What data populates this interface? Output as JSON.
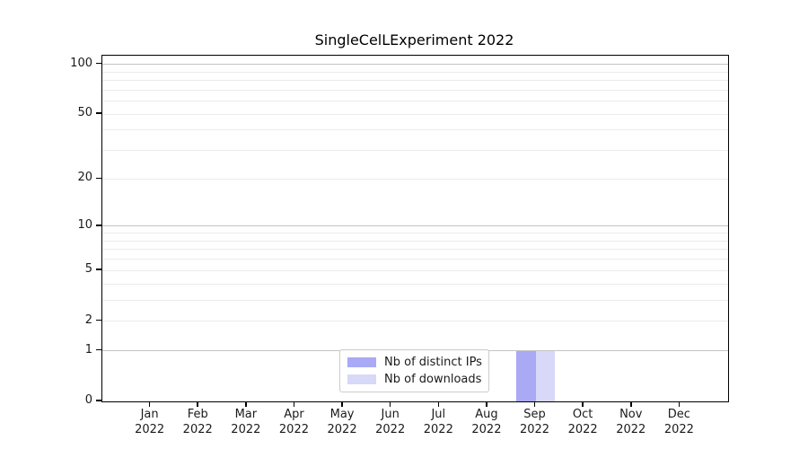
{
  "chart_data": {
    "type": "bar",
    "title": "SingleCelLExperiment 2022",
    "categories": [
      "Jan",
      "Feb",
      "Mar",
      "Apr",
      "May",
      "Jun",
      "Jul",
      "Aug",
      "Sep",
      "Oct",
      "Nov",
      "Dec"
    ],
    "x_year_label": "2022",
    "series": [
      {
        "name": "Nb of distinct IPs",
        "color": "#a9a9f5",
        "values": [
          0,
          0,
          0,
          0,
          0,
          0,
          0,
          0,
          1,
          0,
          0,
          0
        ]
      },
      {
        "name": "Nb of downloads",
        "color": "#d8d8f8",
        "values": [
          0,
          0,
          0,
          0,
          0,
          0,
          0,
          0,
          1,
          0,
          0,
          0
        ]
      }
    ],
    "y_scale": "log10(1+y)",
    "y_tick_labels": [
      0,
      1,
      2,
      5,
      10,
      20,
      50,
      100
    ],
    "y_major_gridlines": [
      1,
      10,
      100
    ],
    "y_minor_gridlines": [
      2,
      3,
      4,
      5,
      6,
      7,
      8,
      9,
      20,
      30,
      40,
      50,
      60,
      70,
      80,
      90
    ],
    "ylim": [
      0,
      113
    ],
    "grid": true,
    "legend_position": "lower-center",
    "colors": {
      "major_grid": "#c3c3c3",
      "minor_grid": "#ebebeb",
      "axis": "#000000",
      "text": "#1a1a1a",
      "background": "#ffffff"
    }
  }
}
